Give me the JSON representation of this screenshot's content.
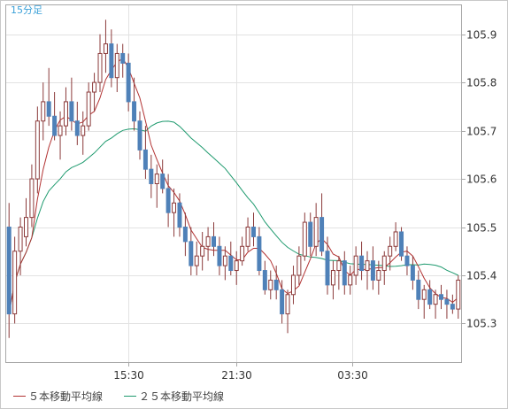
{
  "chart_data": {
    "type": "candlestick",
    "title": "15分足",
    "ylim": [
      105.22,
      105.96
    ],
    "y_ticks": [
      105.3,
      105.4,
      105.5,
      105.6,
      105.7,
      105.8,
      105.9
    ],
    "x_ticks": [
      "15:30",
      "21:30",
      "03:30"
    ],
    "legend": [
      {
        "name": "５本移動平均線",
        "color": "#b23232"
      },
      {
        "name": "２５本移動平均線",
        "color": "#1e9a6e"
      }
    ],
    "grid": true,
    "colors": {
      "up": "#ffffff",
      "down": "#4f81b8",
      "ma5": "#b23232",
      "ma25": "#1e9a6e",
      "period_label": "#3aa0d8"
    },
    "candles": [
      [
        105.5,
        105.55,
        105.27,
        105.32
      ],
      [
        105.32,
        105.48,
        105.3,
        105.45
      ],
      [
        105.45,
        105.52,
        105.4,
        105.5
      ],
      [
        105.48,
        105.56,
        105.46,
        105.52
      ],
      [
        105.52,
        105.63,
        105.5,
        105.6
      ],
      [
        105.6,
        105.75,
        105.57,
        105.72
      ],
      [
        105.72,
        105.8,
        105.68,
        105.76
      ],
      [
        105.76,
        105.83,
        105.71,
        105.73
      ],
      [
        105.73,
        105.78,
        105.68,
        105.69
      ],
      [
        105.69,
        105.74,
        105.64,
        105.71
      ],
      [
        105.71,
        105.79,
        105.69,
        105.76
      ],
      [
        105.76,
        105.81,
        105.7,
        105.72
      ],
      [
        105.72,
        105.76,
        105.67,
        105.69
      ],
      [
        105.69,
        105.74,
        105.65,
        105.71
      ],
      [
        105.71,
        105.8,
        105.7,
        105.78
      ],
      [
        105.78,
        105.82,
        105.74,
        105.8
      ],
      [
        105.8,
        105.9,
        105.78,
        105.86
      ],
      [
        105.86,
        105.93,
        105.82,
        105.88
      ],
      [
        105.88,
        105.91,
        105.79,
        105.81
      ],
      [
        105.81,
        105.88,
        105.78,
        105.86
      ],
      [
        105.86,
        105.88,
        105.81,
        105.84
      ],
      [
        105.84,
        105.86,
        105.74,
        105.76
      ],
      [
        105.76,
        105.81,
        105.7,
        105.72
      ],
      [
        105.72,
        105.74,
        105.64,
        105.66
      ],
      [
        105.66,
        105.71,
        105.6,
        105.62
      ],
      [
        105.62,
        105.65,
        105.56,
        105.59
      ],
      [
        105.59,
        105.63,
        105.54,
        105.61
      ],
      [
        105.61,
        105.64,
        105.57,
        105.58
      ],
      [
        105.58,
        105.61,
        105.5,
        105.53
      ],
      [
        105.53,
        105.58,
        105.48,
        105.55
      ],
      [
        105.55,
        105.57,
        105.48,
        105.5
      ],
      [
        105.5,
        105.53,
        105.44,
        105.47
      ],
      [
        105.47,
        105.5,
        105.4,
        105.42
      ],
      [
        105.42,
        105.47,
        105.4,
        105.44
      ],
      [
        105.44,
        105.49,
        105.41,
        105.46
      ],
      [
        105.46,
        105.5,
        105.43,
        105.48
      ],
      [
        105.48,
        105.51,
        105.44,
        105.46
      ],
      [
        105.46,
        105.48,
        105.4,
        105.42
      ],
      [
        105.42,
        105.46,
        105.39,
        105.44
      ],
      [
        105.44,
        105.47,
        105.4,
        105.41
      ],
      [
        105.41,
        105.45,
        105.38,
        105.43
      ],
      [
        105.43,
        105.48,
        105.42,
        105.46
      ],
      [
        105.46,
        105.52,
        105.45,
        105.5
      ],
      [
        105.5,
        105.53,
        105.46,
        105.48
      ],
      [
        105.48,
        105.5,
        105.4,
        105.41
      ],
      [
        105.41,
        105.43,
        105.36,
        105.37
      ],
      [
        105.37,
        105.41,
        105.35,
        105.39
      ],
      [
        105.39,
        105.42,
        105.35,
        105.37
      ],
      [
        105.37,
        105.39,
        105.3,
        105.32
      ],
      [
        105.32,
        105.37,
        105.28,
        105.36
      ],
      [
        105.36,
        105.42,
        105.34,
        105.4
      ],
      [
        105.4,
        105.46,
        105.38,
        105.44
      ],
      [
        105.44,
        105.53,
        105.43,
        105.51
      ],
      [
        105.51,
        105.53,
        105.44,
        105.46
      ],
      [
        105.46,
        105.55,
        105.44,
        105.52
      ],
      [
        105.52,
        105.57,
        105.44,
        105.45
      ],
      [
        105.45,
        105.48,
        105.36,
        105.38
      ],
      [
        105.38,
        105.43,
        105.35,
        105.41
      ],
      [
        105.41,
        105.44,
        105.37,
        105.43
      ],
      [
        105.43,
        105.45,
        105.36,
        105.38
      ],
      [
        105.38,
        105.42,
        105.36,
        105.4
      ],
      [
        105.4,
        105.46,
        105.38,
        105.44
      ],
      [
        105.44,
        105.47,
        105.39,
        105.41
      ],
      [
        105.41,
        105.45,
        105.37,
        105.43
      ],
      [
        105.43,
        105.46,
        105.37,
        105.39
      ],
      [
        105.39,
        105.43,
        105.36,
        105.41
      ],
      [
        105.41,
        105.45,
        105.38,
        105.44
      ],
      [
        105.44,
        105.48,
        105.41,
        105.46
      ],
      [
        105.46,
        105.51,
        105.45,
        105.49
      ],
      [
        105.49,
        105.5,
        105.43,
        105.44
      ],
      [
        105.44,
        105.46,
        105.4,
        105.42
      ],
      [
        105.42,
        105.44,
        105.37,
        105.39
      ],
      [
        105.39,
        105.41,
        105.33,
        105.35
      ],
      [
        105.35,
        105.38,
        105.31,
        105.37
      ],
      [
        105.37,
        105.39,
        105.33,
        105.34
      ],
      [
        105.34,
        105.37,
        105.31,
        105.36
      ],
      [
        105.36,
        105.38,
        105.33,
        105.35
      ],
      [
        105.35,
        105.37,
        105.31,
        105.34
      ],
      [
        105.34,
        105.36,
        105.32,
        105.33
      ],
      [
        105.33,
        105.4,
        105.31,
        105.39
      ]
    ]
  }
}
